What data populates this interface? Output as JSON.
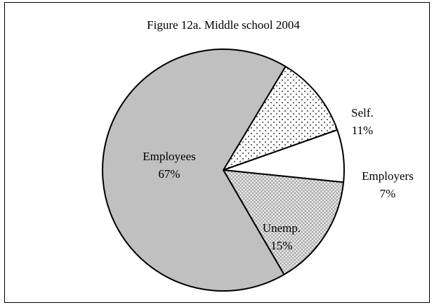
{
  "chart_data": {
    "type": "pie",
    "title": "Figure 12a. Middle school 2004",
    "slices": [
      {
        "label": "Self.",
        "value": 11,
        "value_label": "11%",
        "pattern": "dots"
      },
      {
        "label": "Employers",
        "value": 7,
        "value_label": "7%",
        "pattern": "solid",
        "color": "#ffffff"
      },
      {
        "label": "Unemp.",
        "value": 15,
        "value_label": "15%",
        "pattern": "crosshatch"
      },
      {
        "label": "Employees",
        "value": 67,
        "value_label": "67%",
        "pattern": "solid",
        "color": "#c0c0c0"
      }
    ],
    "legend": "none",
    "labels": "on-slice"
  }
}
